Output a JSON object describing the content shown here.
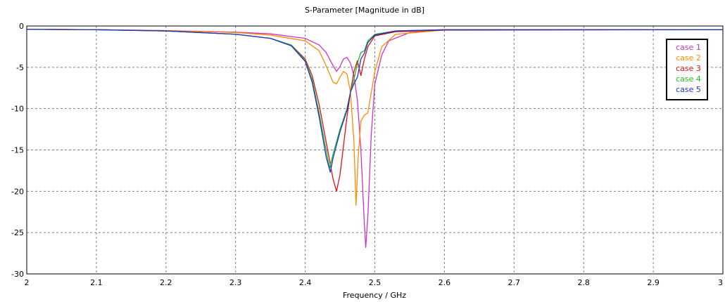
{
  "chart_data": {
    "type": "line",
    "title": "S-Parameter [Magnitude in dB]",
    "xlabel": "Frequency / GHz",
    "ylabel": "",
    "xlim": [
      2,
      3
    ],
    "ylim": [
      -30,
      0
    ],
    "xticks": [
      "2",
      "2.1",
      "2.2",
      "2.3",
      "2.4",
      "2.5",
      "2.6",
      "2.7",
      "2.8",
      "2.9",
      "3"
    ],
    "yticks": [
      "0",
      "-5",
      "-10",
      "-15",
      "-20",
      "-25",
      "-30"
    ],
    "grid": true,
    "legend_position": "top-right",
    "series": [
      {
        "name": "case 1",
        "color": "#cc33cc",
        "points": [
          [
            2.0,
            -0.4
          ],
          [
            2.1,
            -0.45
          ],
          [
            2.2,
            -0.55
          ],
          [
            2.3,
            -0.75
          ],
          [
            2.35,
            -0.95
          ],
          [
            2.4,
            -1.5
          ],
          [
            2.42,
            -2.3
          ],
          [
            2.43,
            -3.2
          ],
          [
            2.44,
            -4.8
          ],
          [
            2.445,
            -5.5
          ],
          [
            2.45,
            -4.9
          ],
          [
            2.455,
            -4.0
          ],
          [
            2.46,
            -3.8
          ],
          [
            2.465,
            -4.5
          ],
          [
            2.47,
            -6.0
          ],
          [
            2.475,
            -9.0
          ],
          [
            2.48,
            -15.0
          ],
          [
            2.485,
            -24.0
          ],
          [
            2.487,
            -26.8
          ],
          [
            2.49,
            -23.0
          ],
          [
            2.495,
            -13.0
          ],
          [
            2.5,
            -7.0
          ],
          [
            2.51,
            -3.5
          ],
          [
            2.52,
            -1.8
          ],
          [
            2.55,
            -0.8
          ],
          [
            2.6,
            -0.5
          ],
          [
            2.7,
            -0.45
          ],
          [
            3.0,
            -0.45
          ]
        ]
      },
      {
        "name": "case 2",
        "color": "#ff8c00",
        "points": [
          [
            2.0,
            -0.4
          ],
          [
            2.1,
            -0.45
          ],
          [
            2.2,
            -0.55
          ],
          [
            2.3,
            -0.8
          ],
          [
            2.35,
            -1.1
          ],
          [
            2.4,
            -1.8
          ],
          [
            2.42,
            -3.0
          ],
          [
            2.43,
            -4.8
          ],
          [
            2.44,
            -6.8
          ],
          [
            2.445,
            -7.0
          ],
          [
            2.45,
            -6.2
          ],
          [
            2.455,
            -5.5
          ],
          [
            2.46,
            -5.8
          ],
          [
            2.465,
            -8.0
          ],
          [
            2.47,
            -14.0
          ],
          [
            2.473,
            -21.7
          ],
          [
            2.476,
            -16.0
          ],
          [
            2.48,
            -11.5
          ],
          [
            2.485,
            -10.8
          ],
          [
            2.49,
            -10.5
          ],
          [
            2.5,
            -5.5
          ],
          [
            2.51,
            -2.5
          ],
          [
            2.53,
            -1.0
          ],
          [
            2.6,
            -0.5
          ],
          [
            2.7,
            -0.45
          ],
          [
            3.0,
            -0.45
          ]
        ]
      },
      {
        "name": "case 3",
        "color": "#e01010",
        "points": [
          [
            2.0,
            -0.4
          ],
          [
            2.1,
            -0.45
          ],
          [
            2.2,
            -0.6
          ],
          [
            2.3,
            -1.0
          ],
          [
            2.35,
            -1.5
          ],
          [
            2.38,
            -2.3
          ],
          [
            2.4,
            -4.0
          ],
          [
            2.41,
            -6.0
          ],
          [
            2.42,
            -9.5
          ],
          [
            2.43,
            -14.0
          ],
          [
            2.44,
            -18.5
          ],
          [
            2.445,
            -20.0
          ],
          [
            2.45,
            -18.0
          ],
          [
            2.46,
            -11.0
          ],
          [
            2.465,
            -8.0
          ],
          [
            2.47,
            -5.5
          ],
          [
            2.475,
            -4.2
          ],
          [
            2.48,
            -6.0
          ],
          [
            2.485,
            -4.0
          ],
          [
            2.49,
            -2.5
          ],
          [
            2.5,
            -1.2
          ],
          [
            2.53,
            -0.7
          ],
          [
            2.6,
            -0.5
          ],
          [
            3.0,
            -0.45
          ]
        ]
      },
      {
        "name": "case 4",
        "color": "#22bb22",
        "points": [
          [
            2.0,
            -0.4
          ],
          [
            2.1,
            -0.45
          ],
          [
            2.2,
            -0.6
          ],
          [
            2.3,
            -1.0
          ],
          [
            2.35,
            -1.5
          ],
          [
            2.38,
            -2.3
          ],
          [
            2.4,
            -4.2
          ],
          [
            2.41,
            -6.5
          ],
          [
            2.42,
            -10.5
          ],
          [
            2.43,
            -15.0
          ],
          [
            2.435,
            -17.2
          ],
          [
            2.44,
            -15.5
          ],
          [
            2.45,
            -12.5
          ],
          [
            2.46,
            -10.0
          ],
          [
            2.465,
            -8.0
          ],
          [
            2.47,
            -6.5
          ],
          [
            2.475,
            -4.5
          ],
          [
            2.48,
            -3.2
          ],
          [
            2.485,
            -3.0
          ],
          [
            2.49,
            -1.8
          ],
          [
            2.5,
            -1.0
          ],
          [
            2.53,
            -0.6
          ],
          [
            2.6,
            -0.45
          ],
          [
            3.0,
            -0.45
          ]
        ]
      },
      {
        "name": "case 5",
        "color": "#2233cc",
        "points": [
          [
            2.0,
            -0.4
          ],
          [
            2.1,
            -0.45
          ],
          [
            2.2,
            -0.6
          ],
          [
            2.3,
            -1.0
          ],
          [
            2.35,
            -1.5
          ],
          [
            2.38,
            -2.4
          ],
          [
            2.4,
            -4.3
          ],
          [
            2.41,
            -6.8
          ],
          [
            2.42,
            -11.0
          ],
          [
            2.43,
            -15.8
          ],
          [
            2.436,
            -17.7
          ],
          [
            2.44,
            -16.0
          ],
          [
            2.45,
            -12.8
          ],
          [
            2.46,
            -10.2
          ],
          [
            2.465,
            -8.0
          ],
          [
            2.47,
            -7.0
          ],
          [
            2.475,
            -6.2
          ],
          [
            2.48,
            -4.0
          ],
          [
            2.485,
            -3.3
          ],
          [
            2.49,
            -2.0
          ],
          [
            2.5,
            -1.1
          ],
          [
            2.53,
            -0.6
          ],
          [
            2.6,
            -0.45
          ],
          [
            3.0,
            -0.45
          ]
        ]
      }
    ]
  }
}
